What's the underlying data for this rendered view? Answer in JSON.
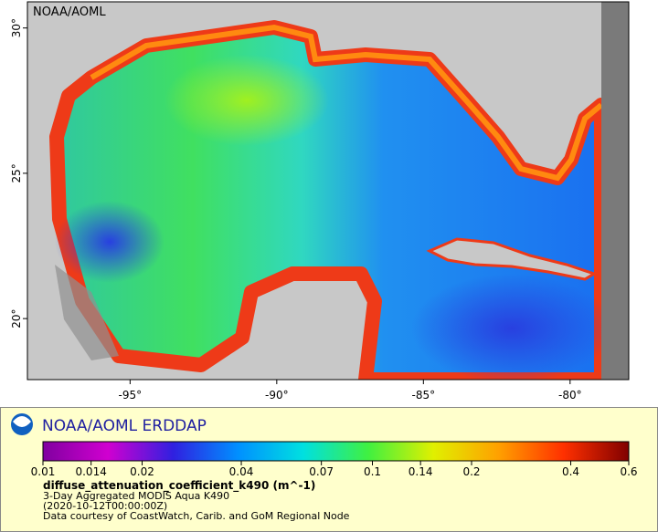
{
  "map": {
    "title": "NOAA/AOML",
    "xlim": [
      -98.5,
      -78
    ],
    "ylim": [
      17.9,
      30.9
    ],
    "xticks": [
      {
        "value": -95,
        "label": "-95°"
      },
      {
        "value": -90,
        "label": "-90°"
      },
      {
        "value": -85,
        "label": "-85°"
      },
      {
        "value": -80,
        "label": "-80°"
      }
    ],
    "yticks": [
      {
        "value": 20,
        "label": "20°"
      },
      {
        "value": 25,
        "label": "25°"
      },
      {
        "value": 30,
        "label": "30°"
      }
    ]
  },
  "legend": {
    "title": "NOAA/AOML ERDDAP",
    "colorbar": {
      "lim": [
        0.01,
        0.6
      ],
      "log": true,
      "colors": [
        "#8000a0",
        "#d000d0",
        "#3020e0",
        "#0090ff",
        "#00e0e0",
        "#40f040",
        "#e0f000",
        "#ffa000",
        "#ff3000",
        "#800000"
      ],
      "ticks": [
        0.01,
        0.014,
        0.02,
        0.04,
        0.07,
        0.1,
        0.14,
        0.2,
        0.4,
        0.6
      ]
    },
    "variable": "diffuse_attenuation_coefficient_k490 (m^-1)",
    "lines": [
      "3-Day Aggregated MODIS Aqua K490",
      "(2020-10-12T00:00:00Z)",
      "Data courtesy of CoastWatch, Carib. and GoM Regional Node"
    ]
  }
}
